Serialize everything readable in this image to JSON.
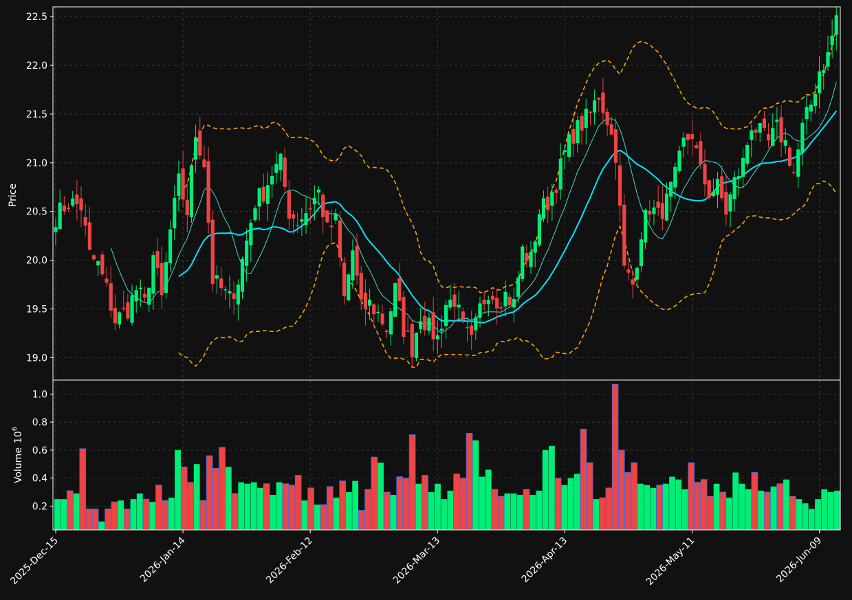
{
  "chart_data": {
    "type": "candlestick",
    "ohlc_daily": true,
    "price_axis": {
      "label": "Price",
      "ylim": [
        18.77,
        22.6
      ],
      "ticks": [
        "19.0",
        "19.5",
        "20.0",
        "20.5",
        "21.0",
        "21.5",
        "22.0",
        "22.5"
      ],
      "tick_values": [
        19.0,
        19.5,
        20.0,
        20.5,
        21.0,
        21.5,
        22.0,
        22.5
      ]
    },
    "volume_axis": {
      "label": "Volume",
      "exponent": "6",
      "ylim": [
        0.03,
        1.1
      ],
      "ticks": [
        "0.2",
        "0.4",
        "0.6",
        "0.8",
        "1.0"
      ],
      "tick_values": [
        0.2,
        0.4,
        0.6,
        0.8,
        1.0
      ]
    },
    "x_ticks": [
      "2025-Dec-15",
      "2026-Jan-14",
      "2026-Feb-12",
      "2026-Mar-13",
      "2026-Apr-13",
      "2026-May-11",
      "2026-Jun-09"
    ],
    "x_tick_index": [
      0,
      30,
      60,
      90,
      120,
      150,
      180
    ],
    "grid": true,
    "colors": {
      "background": "#111111",
      "up": "#00ee77",
      "down": "#ee4444",
      "ma_fast": "#40e0d0",
      "ma_slow": "#00e5ff",
      "bands": "#ffa500",
      "grid": "#3a3a3a",
      "frame": "#ffffff"
    },
    "close_anchors": [
      [
        0,
        20.45
      ],
      [
        3,
        20.6
      ],
      [
        6,
        20.55
      ],
      [
        8,
        20.05
      ],
      [
        10,
        19.95
      ],
      [
        12,
        19.7
      ],
      [
        14,
        19.38
      ],
      [
        17,
        19.5
      ],
      [
        19,
        19.7
      ],
      [
        21,
        19.55
      ],
      [
        23,
        20.05
      ],
      [
        25,
        19.6
      ],
      [
        27,
        20.3
      ],
      [
        29,
        20.8
      ],
      [
        31,
        20.5
      ],
      [
        33,
        21.3
      ],
      [
        35,
        21.0
      ],
      [
        37,
        19.8
      ],
      [
        39,
        19.7
      ],
      [
        41,
        19.6
      ],
      [
        43,
        19.8
      ],
      [
        45,
        20.2
      ],
      [
        47,
        20.6
      ],
      [
        49,
        20.7
      ],
      [
        51,
        20.9
      ],
      [
        53,
        21.0
      ],
      [
        55,
        20.5
      ],
      [
        57,
        20.4
      ],
      [
        59,
        20.5
      ],
      [
        62,
        20.7
      ],
      [
        64,
        20.3
      ],
      [
        66,
        20.4
      ],
      [
        68,
        19.6
      ],
      [
        70,
        20.1
      ],
      [
        72,
        19.5
      ],
      [
        74,
        19.55
      ],
      [
        76,
        19.45
      ],
      [
        78,
        19.3
      ],
      [
        80,
        19.7
      ],
      [
        82,
        19.3
      ],
      [
        84,
        19.1
      ],
      [
        86,
        19.45
      ],
      [
        88,
        19.3
      ],
      [
        90,
        19.2
      ],
      [
        92,
        19.55
      ],
      [
        94,
        19.6
      ],
      [
        96,
        19.3
      ],
      [
        98,
        19.15
      ],
      [
        100,
        19.5
      ],
      [
        102,
        19.7
      ],
      [
        104,
        19.6
      ],
      [
        106,
        19.65
      ],
      [
        108,
        19.55
      ],
      [
        110,
        20.1
      ],
      [
        112,
        20.0
      ],
      [
        114,
        20.5
      ],
      [
        116,
        20.6
      ],
      [
        118,
        20.8
      ],
      [
        120,
        21.1
      ],
      [
        122,
        21.3
      ],
      [
        124,
        21.4
      ],
      [
        126,
        21.5
      ],
      [
        128,
        21.7
      ],
      [
        130,
        21.45
      ],
      [
        132,
        21.1
      ],
      [
        134,
        19.9
      ],
      [
        136,
        19.75
      ],
      [
        138,
        20.3
      ],
      [
        140,
        20.55
      ],
      [
        142,
        20.45
      ],
      [
        144,
        20.6
      ],
      [
        146,
        20.85
      ],
      [
        148,
        21.2
      ],
      [
        150,
        21.3
      ],
      [
        152,
        20.9
      ],
      [
        154,
        20.7
      ],
      [
        156,
        20.75
      ],
      [
        158,
        20.5
      ],
      [
        160,
        20.8
      ],
      [
        162,
        21.0
      ],
      [
        164,
        21.4
      ],
      [
        166,
        21.3
      ],
      [
        168,
        21.2
      ],
      [
        170,
        21.35
      ],
      [
        172,
        21.2
      ],
      [
        174,
        20.9
      ],
      [
        176,
        21.35
      ],
      [
        178,
        21.6
      ],
      [
        180,
        21.95
      ],
      [
        182,
        22.1
      ],
      [
        184,
        22.5
      ]
    ],
    "volume_anchors": [
      [
        0,
        0.25
      ],
      [
        1,
        0.25
      ],
      [
        2,
        0.31
      ],
      [
        3,
        0.29
      ],
      [
        4,
        0.61
      ],
      [
        5,
        0.18
      ],
      [
        6,
        0.18
      ],
      [
        7,
        0.09
      ],
      [
        8,
        0.18
      ],
      [
        9,
        0.23
      ],
      [
        10,
        0.24
      ],
      [
        11,
        0.18
      ],
      [
        12,
        0.25
      ],
      [
        13,
        0.29
      ],
      [
        14,
        0.25
      ],
      [
        15,
        0.23
      ],
      [
        16,
        0.35
      ],
      [
        17,
        0.24
      ],
      [
        18,
        0.26
      ],
      [
        19,
        0.6
      ],
      [
        20,
        0.48
      ],
      [
        21,
        0.37
      ],
      [
        22,
        0.5
      ],
      [
        23,
        0.24
      ],
      [
        24,
        0.56
      ],
      [
        25,
        0.47
      ],
      [
        26,
        0.62
      ],
      [
        27,
        0.48
      ],
      [
        28,
        0.29
      ],
      [
        29,
        0.37
      ],
      [
        30,
        0.36
      ],
      [
        31,
        0.37
      ],
      [
        32,
        0.33
      ],
      [
        33,
        0.36
      ],
      [
        34,
        0.28
      ],
      [
        35,
        0.37
      ],
      [
        36,
        0.36
      ],
      [
        37,
        0.35
      ],
      [
        38,
        0.42
      ],
      [
        39,
        0.24
      ],
      [
        40,
        0.33
      ],
      [
        41,
        0.21
      ],
      [
        42,
        0.21
      ],
      [
        43,
        0.34
      ],
      [
        44,
        0.26
      ],
      [
        45,
        0.38
      ],
      [
        46,
        0.3
      ],
      [
        47,
        0.38
      ],
      [
        48,
        0.17
      ],
      [
        49,
        0.32
      ],
      [
        50,
        0.55
      ],
      [
        51,
        0.51
      ],
      [
        52,
        0.3
      ],
      [
        53,
        0.28
      ],
      [
        54,
        0.41
      ],
      [
        55,
        0.4
      ],
      [
        56,
        0.71
      ],
      [
        57,
        0.36
      ],
      [
        58,
        0.42
      ],
      [
        59,
        0.3
      ],
      [
        60,
        0.36
      ],
      [
        61,
        0.25
      ],
      [
        62,
        0.31
      ],
      [
        63,
        0.43
      ],
      [
        64,
        0.4
      ],
      [
        65,
        0.72
      ],
      [
        66,
        0.67
      ],
      [
        67,
        0.41
      ],
      [
        68,
        0.46
      ],
      [
        69,
        0.32
      ],
      [
        70,
        0.27
      ],
      [
        71,
        0.29
      ],
      [
        72,
        0.29
      ],
      [
        73,
        0.28
      ],
      [
        74,
        0.32
      ],
      [
        75,
        0.28
      ],
      [
        76,
        0.31
      ],
      [
        77,
        0.6
      ],
      [
        78,
        0.63
      ],
      [
        79,
        0.4
      ],
      [
        80,
        0.35
      ],
      [
        81,
        0.4
      ],
      [
        82,
        0.43
      ],
      [
        83,
        0.75
      ],
      [
        84,
        0.51
      ],
      [
        85,
        0.25
      ],
      [
        86,
        0.26
      ],
      [
        87,
        0.33
      ],
      [
        88,
        1.07
      ],
      [
        89,
        0.6
      ],
      [
        90,
        0.44
      ],
      [
        91,
        0.51
      ],
      [
        92,
        0.36
      ],
      [
        93,
        0.35
      ],
      [
        94,
        0.33
      ],
      [
        95,
        0.35
      ],
      [
        96,
        0.36
      ],
      [
        97,
        0.41
      ],
      [
        98,
        0.39
      ],
      [
        99,
        0.32
      ],
      [
        100,
        0.51
      ],
      [
        101,
        0.37
      ],
      [
        102,
        0.39
      ],
      [
        103,
        0.27
      ],
      [
        104,
        0.36
      ],
      [
        105,
        0.3
      ],
      [
        106,
        0.26
      ],
      [
        107,
        0.44
      ],
      [
        108,
        0.36
      ],
      [
        109,
        0.32
      ],
      [
        110,
        0.44
      ],
      [
        111,
        0.31
      ],
      [
        112,
        0.3
      ],
      [
        113,
        0.34
      ],
      [
        114,
        0.36
      ],
      [
        115,
        0.39
      ],
      [
        116,
        0.27
      ],
      [
        117,
        0.25
      ],
      [
        118,
        0.22
      ],
      [
        119,
        0.18
      ],
      [
        120,
        0.25
      ],
      [
        121,
        0.32
      ],
      [
        122,
        0.3
      ],
      [
        123,
        0.31
      ]
    ],
    "series": [
      {
        "name": "",
        "kind": "moving-average",
        "window": 10,
        "color_key": "ma_fast",
        "start_index": 13
      },
      {
        "name": "",
        "kind": "moving-average",
        "window": 20,
        "color_key": "ma_slow",
        "start_index": 29
      },
      {
        "name": "",
        "kind": "bollinger-upper",
        "window": 20,
        "color_key": "bands",
        "start_index": 29
      },
      {
        "name": "",
        "kind": "bollinger-lower",
        "window": 20,
        "color_key": "bands",
        "start_index": 29
      }
    ]
  }
}
